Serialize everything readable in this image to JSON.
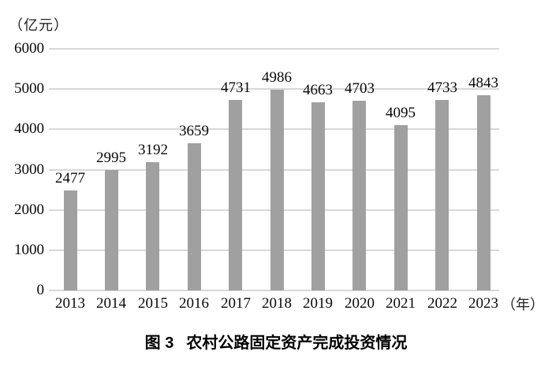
{
  "chart_data": {
    "type": "bar",
    "title": "图 3 农村公路固定资产完成投资情况",
    "caption_prefix": "图 3",
    "caption_text": "农村公路固定资产完成投资情况",
    "unit_label": "（亿元）",
    "x_unit_label": "（年）",
    "categories": [
      "2013",
      "2014",
      "2015",
      "2016",
      "2017",
      "2018",
      "2019",
      "2020",
      "2021",
      "2022",
      "2023"
    ],
    "values": [
      2477,
      2995,
      3192,
      3659,
      4731,
      4986,
      4663,
      4703,
      4095,
      4733,
      4843
    ],
    "xlabel": "",
    "ylabel": "",
    "ylim": [
      0,
      6000
    ],
    "ytick_interval": 1000,
    "grid": true,
    "legend": "none",
    "bar_color": "#a0a0a0",
    "gridline_color": "#d8d8d8",
    "value_labels_shown": true
  }
}
